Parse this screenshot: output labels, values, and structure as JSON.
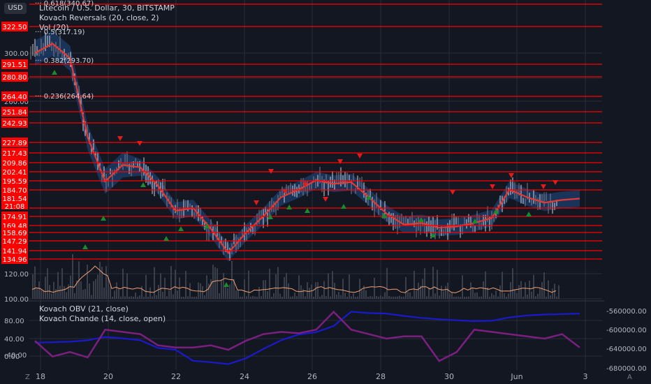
{
  "chart_header": {
    "currency_button": "USD",
    "symbol_title": "Litecoin / U.S. Dollar, 30, BITSTAMP",
    "indicator_1": "Kovach Reversals (20, close, 2)",
    "indicator_2": "Vol (20)",
    "sub_indicator_1": "Kovach OBV (21, close)",
    "sub_indicator_2": "Kovach Chande (14, close, open)"
  },
  "fib_labels": [
    "0.618(340.67)",
    "0.5(317.19)",
    "0.382(293.70)",
    "0.236(264.64)"
  ],
  "price_axis_labels": [
    "300.00",
    "280.00",
    "260.00",
    "120.00",
    "100.00"
  ],
  "level_labels": [
    "322.50",
    "291.51",
    "280.80",
    "264.40",
    "251.84",
    "242.93",
    "227.89",
    "217.43",
    "209.86",
    "202.41",
    "195.59",
    "184.70",
    "174.91",
    "169.48",
    "158.69",
    "147.29",
    "141.94",
    "134.96"
  ],
  "current_price": {
    "price": "181.54",
    "countdown": "21:08"
  },
  "lower_left_axis": [
    "80.00",
    "40.00",
    "0.00",
    "-40.00"
  ],
  "lower_right_axis": [
    "-560000.00",
    "-600000.00",
    "-640000.00",
    "-680000.00"
  ],
  "time_axis": [
    "18",
    "20",
    "22",
    "24",
    "26",
    "28",
    "30",
    "Jun",
    "3"
  ],
  "bottom_icons": {
    "zoom": "Z",
    "auto": "A"
  },
  "colors": {
    "background": "#131722",
    "level_line": "#ff0000",
    "basis": "#e53935",
    "band": "#1e3d6b",
    "obv": "#1a1acc",
    "chande": "#7b1f7f",
    "volume_ma": "#f0a070",
    "up_arrow": "#1b8a2a",
    "down_arrow": "#e21b1b"
  },
  "chart_data": {
    "type": "line",
    "title": "Litecoin / U.S. Dollar, 30, BITSTAMP",
    "x": [
      "18",
      "18.5",
      "19",
      "19.5",
      "20",
      "20.5",
      "21",
      "21.5",
      "22",
      "22.5",
      "23",
      "23.5",
      "24",
      "24.5",
      "25",
      "25.5",
      "26",
      "26.5",
      "27",
      "27.5",
      "28",
      "28.5",
      "29",
      "29.5",
      "30",
      "30.5",
      "31",
      "31.5",
      "Jun",
      "1.5",
      "2",
      "2.3"
    ],
    "series": [
      {
        "name": "Kovach Reversals (20, close, 2)",
        "values": [
          300,
          308,
          296,
          232,
          195,
          208,
          206,
          190,
          177,
          178,
          165,
          140,
          158,
          175,
          182,
          185,
          196,
          192,
          194,
          182,
          176,
          170,
          171,
          166,
          168,
          171,
          174,
          185,
          182,
          180,
          181,
          181.5
        ]
      },
      {
        "name": "Kovach OBV (21, close)",
        "values": [
          -627000,
          -626000,
          -625000,
          -622000,
          -615000,
          -618000,
          -622000,
          -638000,
          -642000,
          -665000,
          -668000,
          -672000,
          -660000,
          -640000,
          -622000,
          -610000,
          -605000,
          -592000,
          -562000,
          -565000,
          -566000,
          -571000,
          -575000,
          -578000,
          -580000,
          -582000,
          -581000,
          -574000,
          -570000,
          -568000,
          -567000,
          -566000
        ]
      },
      {
        "name": "Kovach Chande (14, close, open)",
        "values": [
          -5,
          -40,
          -30,
          -42,
          20,
          15,
          10,
          -15,
          -20,
          -20,
          -15,
          -25,
          -5,
          10,
          15,
          12,
          20,
          60,
          20,
          10,
          0,
          5,
          5,
          -50,
          -30,
          20,
          15,
          10,
          5,
          0,
          10,
          -20
        ]
      }
    ],
    "price_range": [
      95,
      345
    ],
    "oscillator_range": [
      -60,
      100
    ]
  }
}
